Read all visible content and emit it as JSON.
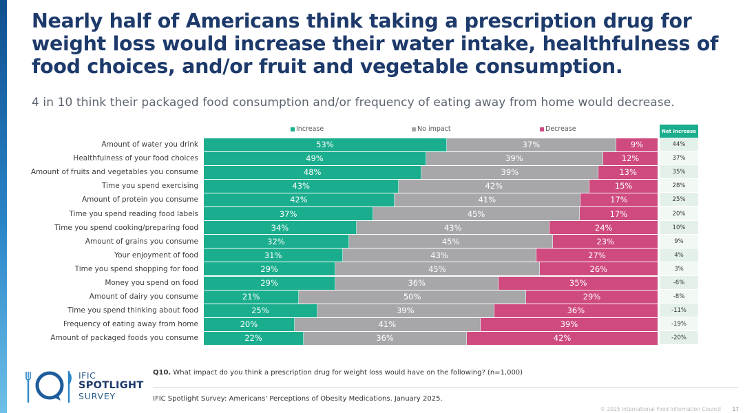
{
  "title": "Nearly half of Americans think taking a prescription drug for weight loss would increase their water intake, healthfulness of food choices, and/or fruit and vegetable consumption.",
  "subtitle": "4 in 10 think their packaged food consumption and/or frequency of eating away from home would decrease.",
  "colors": {
    "increase": "#1bae8e",
    "no_impact": "#a7a7aa",
    "decrease": "#cf4a7f",
    "title": "#1d3a6b"
  },
  "chart_data": {
    "type": "bar",
    "orientation": "horizontal",
    "stacked": true,
    "unit": "%",
    "legend": [
      "Increase",
      "No impact",
      "Decrease"
    ],
    "legend_position": "top",
    "net_header": "Net Increase",
    "categories": [
      "Amount of water you drink",
      "Healthfulness of your food choices",
      "Amount of fruits and vegetables you consume",
      "Time you spend exercising",
      "Amount of protein you consume",
      "Time you spend reading food labels",
      "Time you spend cooking/preparing food",
      "Amount of grains you consume",
      "Your enjoyment of food",
      "Time you spend shopping for food",
      "Money you spend on food",
      "Amount of dairy you consume",
      "Time you spend thinking about food",
      "Frequency of eating away from home",
      "Amount of packaged foods you consume"
    ],
    "series": [
      {
        "name": "Increase",
        "values": [
          53,
          49,
          48,
          43,
          42,
          37,
          34,
          32,
          31,
          29,
          29,
          21,
          25,
          20,
          22
        ]
      },
      {
        "name": "No impact",
        "values": [
          37,
          39,
          39,
          42,
          41,
          45,
          43,
          45,
          43,
          45,
          36,
          50,
          39,
          41,
          36
        ]
      },
      {
        "name": "Decrease",
        "values": [
          9,
          12,
          13,
          15,
          17,
          17,
          24,
          23,
          27,
          26,
          35,
          29,
          36,
          39,
          42
        ]
      }
    ],
    "net_increase": [
      "44%",
      "37%",
      "35%",
      "28%",
      "25%",
      "20%",
      "10%",
      "9%",
      "4%",
      "3%",
      "-6%",
      "-8%",
      "-11%",
      "-19%",
      "-20%"
    ]
  },
  "logo": {
    "line1": "IFIC",
    "line2": "SPOTLIGHT",
    "line3": "SURVEY"
  },
  "question": {
    "label": "Q10.",
    "text": " What impact do you think a prescription drug for weight loss would have on the following? (n=1,000)"
  },
  "source": "IFIC Spotlight Survey: Americans' Perceptions of Obesity Medications. January 2025.",
  "copyright": "© 2025 International Food Information Council",
  "page_number": "17"
}
